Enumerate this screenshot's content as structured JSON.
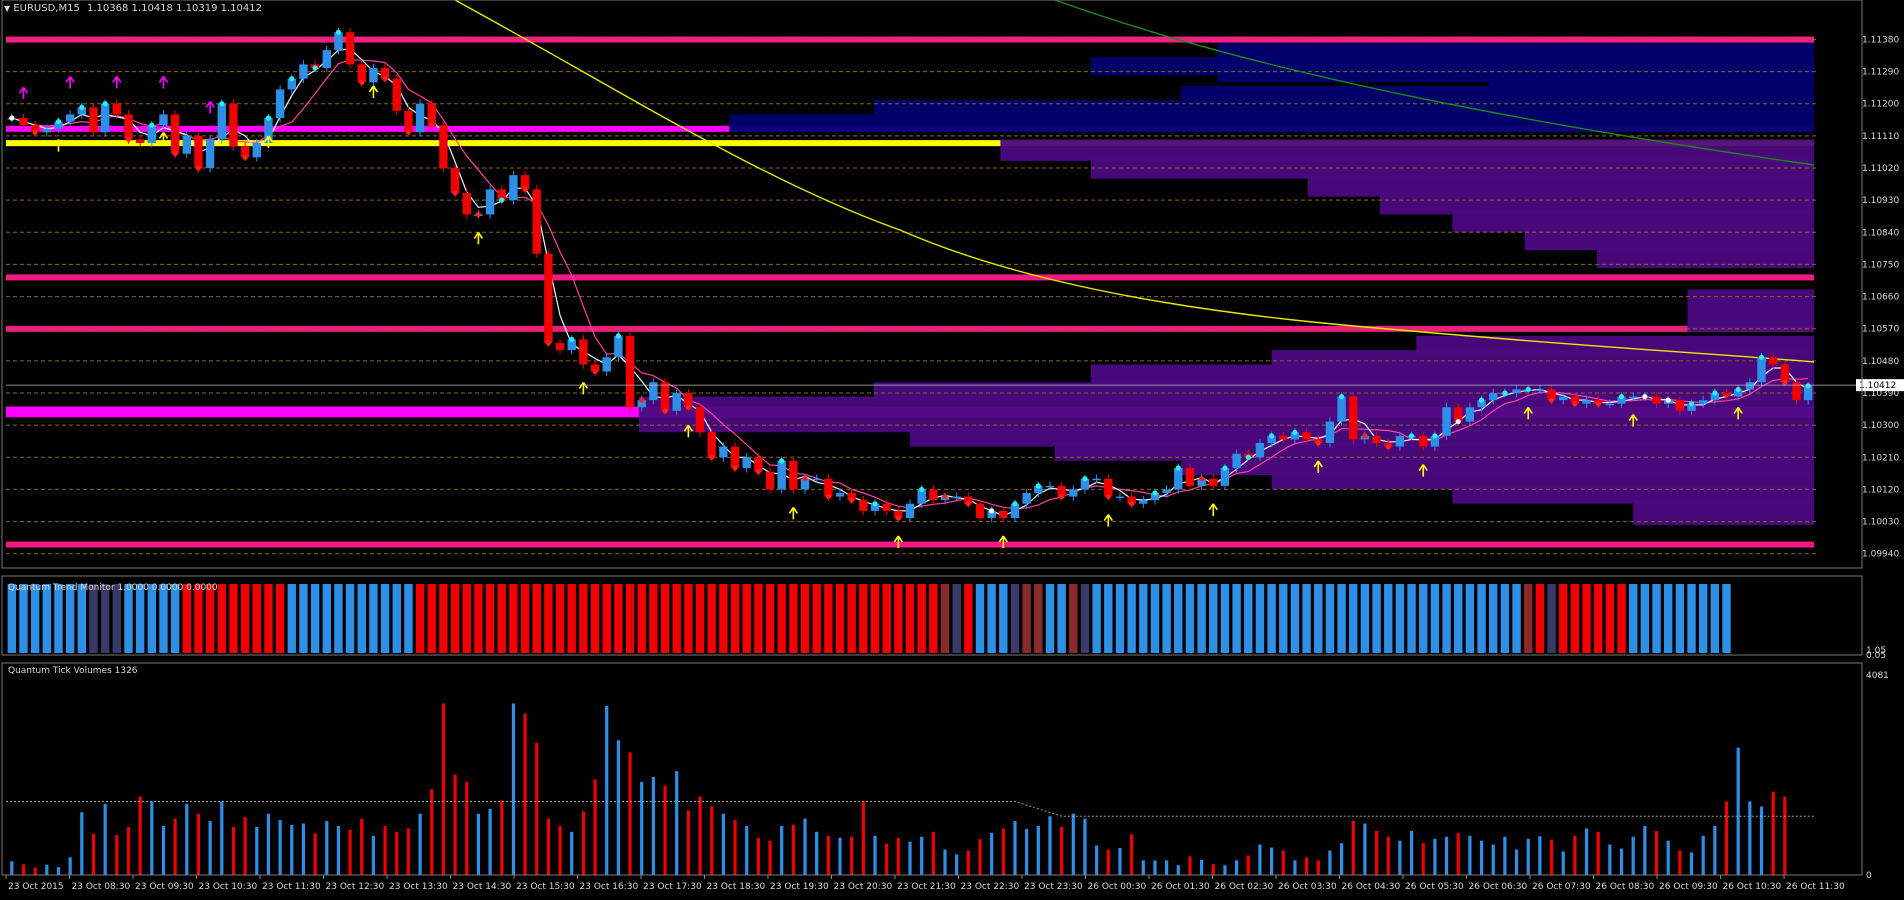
{
  "window": {
    "title": "EURUSD,M15",
    "quote": "1.10368 1.10418 1.10319 1.10412",
    "menu_icon": "triangle-down-icon"
  },
  "colors": {
    "background": "#000000",
    "bull": "#2e8fe6",
    "bear": "#f00000",
    "magenta": "#ff00ff",
    "pink_band": "#ff1a8c",
    "yellow": "#ffff00",
    "navy_profile": "#00006e",
    "purple_profile": "#4b0a80",
    "ma_fast": "#e8f8ff",
    "ma_slow": "#ff3fa0",
    "ma_long": "#e8e800",
    "ma_green": "#1a8a1a",
    "grid": "#8a6a1a",
    "axis_text": "#d8d8d8"
  },
  "chart_data": [
    {
      "type": "candlestick",
      "title": "EURUSD,M15",
      "ylim": [
        1.099,
        1.1144
      ],
      "y_ticks": [
        "1.11380",
        "1.11290",
        "1.11200",
        "1.11110",
        "1.11020",
        "1.10930",
        "1.10840",
        "1.10750",
        "1.10660",
        "1.10570",
        "1.10480",
        "1.10390",
        "1.10300",
        "1.10210",
        "1.10120",
        "1.10030",
        "1.09940"
      ],
      "current_price": "1.10412",
      "x_ticks": [
        "23 Oct 2015",
        "23 Oct 08:30",
        "23 Oct 09:30",
        "23 Oct 10:30",
        "23 Oct 11:30",
        "23 Oct 12:30",
        "23 Oct 13:30",
        "23 Oct 14:30",
        "23 Oct 15:30",
        "23 Oct 16:30",
        "23 Oct 17:30",
        "23 Oct 18:30",
        "23 Oct 19:30",
        "23 Oct 20:30",
        "23 Oct 21:30",
        "23 Oct 22:30",
        "23 Oct 23:30",
        "26 Oct 00:30",
        "26 Oct 01:30",
        "26 Oct 02:30",
        "26 Oct 03:30",
        "26 Oct 04:30",
        "26 Oct 05:30",
        "26 Oct 06:30",
        "26 Oct 07:30",
        "26 Oct 08:30",
        "26 Oct 09:30",
        "26 Oct 10:30",
        "26 Oct 11:30"
      ],
      "close": [
        1.1116,
        1.1114,
        1.1112,
        1.1113,
        1.1115,
        1.1117,
        1.1119,
        1.1112,
        1.112,
        1.1117,
        1.111,
        1.1109,
        1.1114,
        1.1117,
        1.1106,
        1.1111,
        1.1102,
        1.111,
        1.112,
        1.1108,
        1.1105,
        1.1109,
        1.1116,
        1.1124,
        1.1127,
        1.1131,
        1.113,
        1.1135,
        1.114,
        1.1131,
        1.1126,
        1.113,
        1.1127,
        1.1118,
        1.1112,
        1.112,
        1.1114,
        1.1102,
        1.1095,
        1.1089,
        1.1089,
        1.1096,
        1.1093,
        1.11,
        1.1096,
        1.1078,
        1.1053,
        1.1051,
        1.1054,
        1.1047,
        1.1045,
        1.1049,
        1.1055,
        1.1035,
        1.1037,
        1.1042,
        1.1034,
        1.1039,
        1.1035,
        1.1028,
        1.1021,
        1.1024,
        1.1018,
        1.1021,
        1.1017,
        1.1012,
        1.102,
        1.1012,
        1.1015,
        1.1015,
        1.101,
        1.1011,
        1.1009,
        1.1006,
        1.1008,
        1.1006,
        1.1004,
        1.1008,
        1.1012,
        1.1009,
        1.101,
        1.101,
        1.1008,
        1.1004,
        1.1006,
        1.1004,
        1.1008,
        1.1011,
        1.1013,
        1.1013,
        1.101,
        1.1012,
        1.1015,
        1.1015,
        1.101,
        1.101,
        1.1008,
        1.1009,
        1.1011,
        1.1012,
        1.1018,
        1.1013,
        1.1015,
        1.1013,
        1.1018,
        1.1022,
        1.1021,
        1.1025,
        1.1027,
        1.1026,
        1.1028,
        1.1026,
        1.1025,
        1.1031,
        1.1038,
        1.1026,
        1.1027,
        1.1025,
        1.1024,
        1.1027,
        1.1027,
        1.1024,
        1.1027,
        1.1035,
        1.1031,
        1.1035,
        1.1037,
        1.1039,
        1.1039,
        1.104,
        1.104,
        1.104,
        1.1037,
        1.1038,
        1.1036,
        1.1037,
        1.1036,
        1.1036,
        1.1038,
        1.1038,
        1.1038,
        1.1036,
        1.1037,
        1.1034,
        1.1036,
        1.1037,
        1.1039,
        1.1038,
        1.104,
        1.1042,
        1.1049,
        1.1047,
        1.1042,
        1.1037,
        1.1041
      ],
      "volume": {
        "ylim": [
          0,
          4081
        ],
        "y_ticks": [
          "4081",
          "0"
        ],
        "values": [
          280,
          220,
          150,
          210,
          160,
          360,
          1280,
          840,
          1450,
          820,
          980,
          1600,
          1500,
          1000,
          1150,
          1450,
          1250,
          1100,
          1500,
          980,
          1180,
          980,
          1250,
          1120,
          1020,
          1050,
          850,
          1100,
          1000,
          920,
          1150,
          800,
          1000,
          880,
          950,
          1250,
          1750,
          3500,
          2050,
          1900,
          1250,
          1350,
          1520,
          3500,
          3300,
          2700,
          1150,
          1000,
          880,
          1300,
          1950,
          3450,
          2750,
          2500,
          1900,
          2000,
          1820,
          2120,
          1320,
          1600,
          1400,
          1250,
          1120,
          1000,
          760,
          700,
          1000,
          1020,
          1150,
          880,
          800,
          760,
          780,
          1500,
          800,
          640,
          760,
          680,
          780,
          880,
          520,
          420,
          500,
          730,
          860,
          950,
          1100,
          940,
          1000,
          1200,
          980,
          1250,
          1150,
          600,
          520,
          550,
          830,
          300,
          300,
          300,
          200,
          380,
          310,
          220,
          200,
          300,
          400,
          620,
          560,
          500,
          300,
          360,
          300,
          500,
          650,
          1100,
          1050,
          900,
          780,
          700,
          900,
          650,
          740,
          780,
          860,
          800,
          700,
          620,
          780,
          520,
          740,
          790,
          720,
          480,
          800,
          950,
          880,
          620,
          540,
          780,
          1000,
          900,
          700,
          500,
          460,
          800,
          1000,
          1500,
          2600,
          1500,
          1400,
          1700,
          1600
        ]
      },
      "trend_monitor_colors": [
        "b",
        "b",
        "b",
        "b",
        "b",
        "b",
        "b",
        "s",
        "s",
        "s",
        "b",
        "b",
        "b",
        "b",
        "b",
        "r",
        "r",
        "r",
        "r",
        "r",
        "r",
        "r",
        "r",
        "r",
        "b",
        "b",
        "b",
        "b",
        "b",
        "b",
        "b",
        "b",
        "b",
        "b",
        "b",
        "r",
        "r",
        "r",
        "r",
        "r",
        "r",
        "r",
        "r",
        "r",
        "r",
        "r",
        "r",
        "r",
        "r",
        "r",
        "r",
        "r",
        "r",
        "r",
        "r",
        "r",
        "r",
        "r",
        "r",
        "r",
        "r",
        "r",
        "r",
        "r",
        "r",
        "r",
        "r",
        "r",
        "r",
        "r",
        "r",
        "r",
        "r",
        "r",
        "r",
        "r",
        "r",
        "r",
        "r",
        "r",
        "d",
        "s",
        "r",
        "b",
        "b",
        "b",
        "s",
        "d",
        "d",
        "b",
        "b",
        "d",
        "s",
        "b",
        "b",
        "b",
        "b",
        "b",
        "b",
        "b",
        "b",
        "b",
        "b",
        "b",
        "b",
        "b",
        "b",
        "b",
        "b",
        "b",
        "b",
        "b",
        "b",
        "b",
        "b",
        "b",
        "b",
        "b",
        "b",
        "b",
        "b",
        "b",
        "b",
        "b",
        "b",
        "b",
        "b",
        "b",
        "b",
        "b",
        "d",
        "r",
        "s",
        "r",
        "r",
        "r",
        "r",
        "r",
        "r",
        "b",
        "b",
        "b",
        "b",
        "b",
        "b",
        "b",
        "b",
        "b"
      ]
    }
  ],
  "indicators": {
    "trend_monitor_label": "Quantum Trend Monitor 1.0000 0.0000 0.0000",
    "trend_monitor_scale_top": "1.05",
    "trend_monitor_scale_bottom": "0.05",
    "tick_volume_label": "Quantum Tick Volumes 1326",
    "volume_avg_line_left": 1500,
    "volume_avg_line_right": 1200
  }
}
